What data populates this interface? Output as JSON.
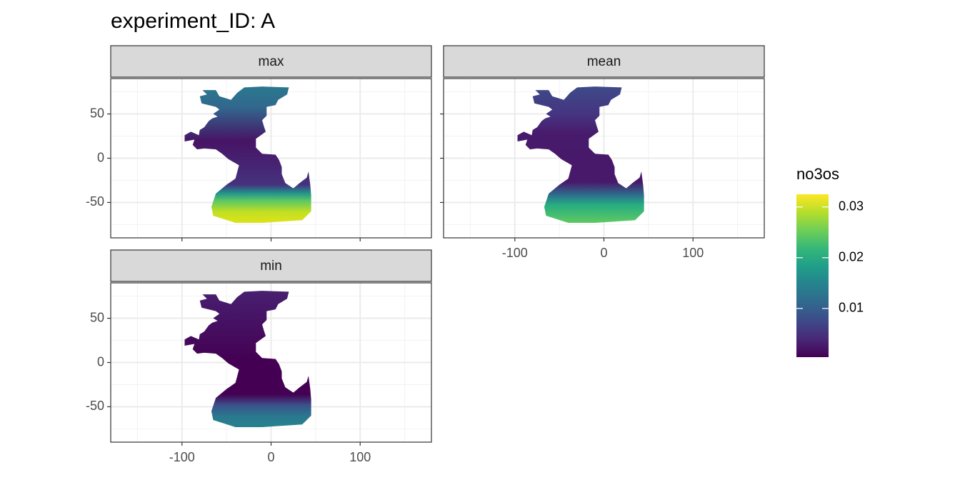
{
  "title": "experiment_ID: A",
  "chart_data": [
    {
      "type": "raster-map",
      "strip": "max",
      "xlim": [
        -180,
        180
      ],
      "ylim": [
        -90,
        90
      ],
      "xticks": [
        -100,
        0,
        100
      ],
      "yticks": [
        -50,
        0,
        50
      ],
      "x_axis_labels": false,
      "y_axis_labels": true,
      "grid": true
    },
    {
      "type": "raster-map",
      "strip": "mean",
      "xlim": [
        -180,
        180
      ],
      "ylim": [
        -90,
        90
      ],
      "xticks": [
        -100,
        0,
        100
      ],
      "yticks": [
        -50,
        0,
        50
      ],
      "x_axis_labels": true,
      "y_axis_labels": false,
      "grid": true
    },
    {
      "type": "raster-map",
      "strip": "min",
      "xlim": [
        -180,
        180
      ],
      "ylim": [
        -90,
        90
      ],
      "xticks": [
        -100,
        0,
        100
      ],
      "yticks": [
        -50,
        0,
        50
      ],
      "x_axis_labels": true,
      "y_axis_labels": true,
      "grid": true
    }
  ],
  "colorbar": {
    "title": "no3os",
    "limits": [
      0.0004,
      0.0325
    ],
    "ticks": [
      0.01,
      0.02,
      0.03
    ],
    "colors": [
      "#440154",
      "#482878",
      "#3e4a89",
      "#31688e",
      "#26828e",
      "#1f9e89",
      "#35b779",
      "#6ece58",
      "#b5de2b",
      "#fde725"
    ]
  }
}
